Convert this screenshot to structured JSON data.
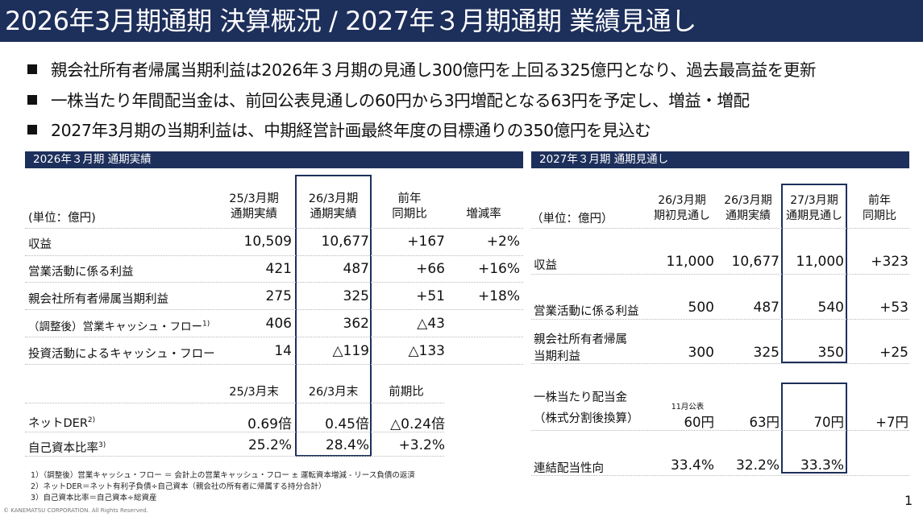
{
  "title": "2026年3月期通期 決算概況 / 2027年３月期通期 業績見通し",
  "bullets": [
    "親会社所有者帰属当期利益は2026年３月期の見通し300億円を上回る325億円となり、過去最高益を更新",
    "一株当たり年間配当金は、前回公表見通しの60円から3円増配となる63円を予定し、増益・増配",
    "2027年3月期の当期利益は、中期経営計画最終年度の目標通りの350億円を見込む"
  ],
  "left": {
    "section_title": "2026年３月期 通期実績",
    "unit_label": "(単位：億円)",
    "columns": [
      "25/3月期\n通期実績",
      "26/3月期\n通期実績",
      "前年\n同期比",
      "増減率"
    ],
    "rows": [
      {
        "label": "収益",
        "values": [
          "10,509",
          "10,677",
          "+167",
          "+2%"
        ]
      },
      {
        "label": "営業活動に係る利益",
        "values": [
          "421",
          "487",
          "+66",
          "+16%"
        ]
      },
      {
        "label": "親会社所有者帰属当期利益",
        "values": [
          "275",
          "325",
          "+51",
          "+18%"
        ]
      },
      {
        "label": "（調整後）営業キャッシュ・フロー",
        "sup": "1)",
        "values": [
          "406",
          "362",
          "△43",
          ""
        ]
      },
      {
        "label": "投資活動によるキャッシュ・フロー",
        "values": [
          "14",
          "△119",
          "△133",
          ""
        ]
      }
    ],
    "columns2": [
      "25/3月末",
      "26/3月末",
      "前期比"
    ],
    "rows2": [
      {
        "label": "ネットDER",
        "sup": "2)",
        "values": [
          "0.69倍",
          "0.45倍",
          "△0.24倍"
        ]
      },
      {
        "label": "自己資本比率",
        "sup": "3)",
        "values": [
          "25.2%",
          "28.4%",
          "+3.2%"
        ]
      }
    ],
    "footnotes": [
      "1）（調整後）営業キャッシュ・フロー ＝ 会計上の営業キャッシュ・フロー ± 運転資本増減 - リース負債の返済",
      "2）ネットDER＝ネット有利子負債÷自己資本（親会社の所有者に帰属する持分合計）",
      "3）自己資本比率＝自己資本÷総資産"
    ]
  },
  "right": {
    "section_title": "2027年３月期 通期見通し",
    "unit_label": "（単位：億円）",
    "columns": [
      "26/3月期\n期初見通し",
      "26/3月期\n通期実績",
      "27/3月期\n通期見通し",
      "前年\n同期比"
    ],
    "rows": [
      {
        "label": "収益",
        "values": [
          "11,000",
          "10,677",
          "11,000",
          "+323"
        ]
      },
      {
        "label": "営業活動に係る利益",
        "values": [
          "500",
          "487",
          "540",
          "+53"
        ]
      },
      {
        "label1": "親会社所有者帰属",
        "label2": "当期利益",
        "values": [
          "300",
          "325",
          "350",
          "+25"
        ]
      }
    ],
    "dividend": {
      "label1": "一株当たり配当金",
      "label2": "（株式分割後換算）",
      "note": "11月公表",
      "values": [
        "60円",
        "63円",
        "70円",
        "+7円"
      ]
    },
    "payout": {
      "label": "連結配当性向",
      "values": [
        "33.4%",
        "32.2%",
        "33.3%"
      ]
    }
  },
  "copyright": "© KANEMATSU CORPORATION. All Rights Reserved.",
  "page_number": "1"
}
